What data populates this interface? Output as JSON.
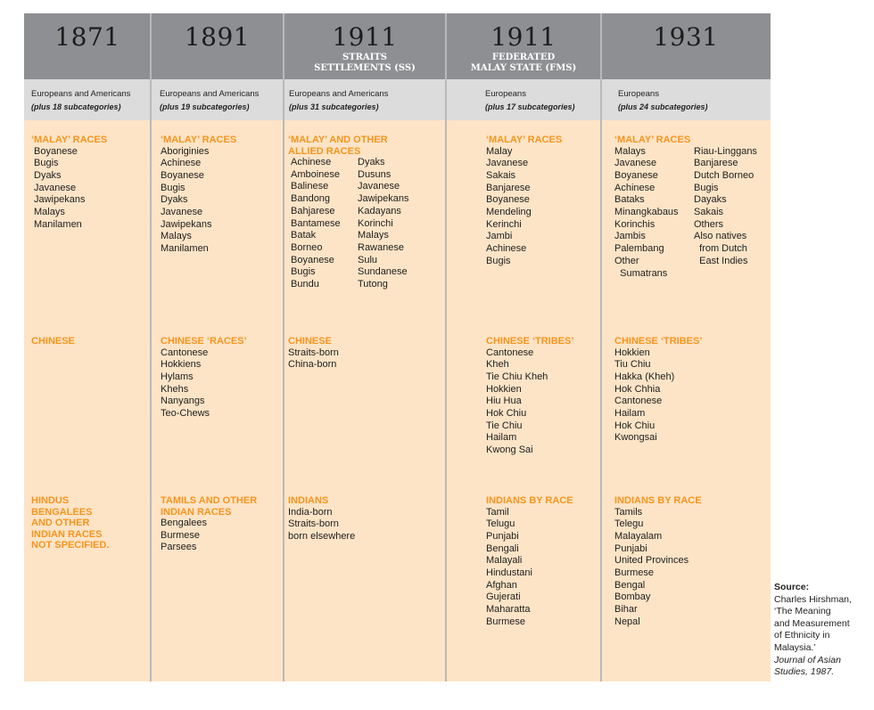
{
  "colors": {
    "header": "#8e8f92",
    "subheader": "#dcdcdd",
    "body": "#fde4c7",
    "heading": "#f7941d"
  },
  "columns": [
    {
      "year": "1871",
      "subtitle": "",
      "europeans": "Europeans and Americans",
      "subcats": "(plus 18 subcategories)",
      "malay": {
        "heading": "‘MALAY’ RACES",
        "items": [
          "Boyanese",
          "Bugis",
          "Dyaks",
          "Javanese",
          "Jawipekans",
          "Malays",
          "Manilamen"
        ],
        "items2": []
      },
      "chinese": {
        "heading": "CHINESE",
        "items": []
      },
      "indian": {
        "heading": "HINDUS\nBENGALEES\nAND OTHER\nINDIAN RACES\nNOT SPECIFIED.",
        "items": []
      }
    },
    {
      "year": "1891",
      "subtitle": "",
      "europeans": "Europeans and Americans",
      "subcats": "(plus 19 subcategories)",
      "malay": {
        "heading": "‘MALAY’ RACES",
        "items": [
          "Aboriginies",
          "Achinese",
          "Boyanese",
          "Bugis",
          "Dyaks",
          "Javanese",
          "Jawipekans",
          "Malays",
          "Manilamen"
        ],
        "items2": []
      },
      "chinese": {
        "heading": "CHINESE ‘RACES’",
        "items": [
          "Cantonese",
          "Hokkiens",
          "Hylams",
          "Khehs",
          "Nanyangs",
          "Teo-Chews"
        ]
      },
      "indian": {
        "heading": "TAMILS AND OTHER\nINDIAN RACES",
        "items": [
          "Bengalees",
          "Burmese",
          "Parsees"
        ]
      }
    },
    {
      "year": "1911",
      "subtitle": "STRAITS\nSETTLEMENTS (SS)",
      "europeans": "Europeans and Americans",
      "subcats": "(plus 31 subcategories)",
      "malay": {
        "heading": "‘MALAY’ AND OTHER\nALLIED RACES",
        "items": [
          "Achinese",
          "Amboinese",
          "Balinese",
          "Bandong",
          "Bahjarese",
          "Bantamese",
          "Batak",
          "Borneo",
          "Boyanese",
          "Bugis",
          "Bundu"
        ],
        "items2": [
          "Dyaks",
          "Dusuns",
          "Javanese",
          "Jawipekans",
          "Kadayans",
          "Korinchi",
          "Malays",
          "Rawanese",
          "Sulu",
          "Sundanese",
          "Tutong"
        ]
      },
      "chinese": {
        "heading": "CHINESE",
        "items": [
          "Straits-born",
          "China-born"
        ]
      },
      "indian": {
        "heading": "INDIANS",
        "items": [
          "India-born",
          "Straits-born",
          "born elsewhere"
        ]
      }
    },
    {
      "year": "1911",
      "subtitle": "FEDERATED\nMALAY STATE (FMS)",
      "europeans": "Europeans",
      "subcats": "(plus 17 subcategories)",
      "malay": {
        "heading": "‘MALAY’ RACES",
        "items": [
          "Malay",
          "Javanese",
          "Sakais",
          "Banjarese",
          "Boyanese",
          "Mendeling",
          "Kerinchi",
          "Jambi",
          "Achinese",
          "Bugis"
        ],
        "items2": []
      },
      "chinese": {
        "heading": "CHINESE ‘TRIBES’",
        "items": [
          "Cantonese",
          "Kheh",
          "Tie Chiu Kheh",
          "Hokkien",
          "Hiu Hua",
          "Hok Chiu",
          "Tie Chiu",
          "Hailam",
          "Kwong Sai"
        ]
      },
      "indian": {
        "heading": "INDIANS BY RACE",
        "items": [
          "Tamil",
          "Telugu",
          "Punjabi",
          "Bengali",
          "Malayali",
          "Hindustani",
          "Afghan",
          "Gujerati",
          "Maharatta",
          "Burmese"
        ]
      }
    },
    {
      "year": "1931",
      "subtitle": "",
      "europeans": "Europeans",
      "subcats": "(plus 24 subcategories)",
      "malay": {
        "heading": "‘MALAY’ RACES",
        "items": [
          "Malays",
          "Javanese",
          "Boyanese",
          "Achinese",
          "Bataks",
          "Minangkabaus",
          "Korinchis",
          "Jambis",
          "Palembang",
          "Other",
          "  Sumatrans"
        ],
        "items2": [
          "Riau-Linggans",
          "Banjarese",
          "Dutch Borneo",
          "Bugis",
          "Dayaks",
          "Sakais",
          "Others",
          "Also natives",
          "  from Dutch",
          "  East Indies"
        ]
      },
      "chinese": {
        "heading": "CHINESE ‘TRIBES’",
        "items": [
          "Hokkien",
          "Tiu Chiu",
          "Hakka (Kheh)",
          "Hok Chhia",
          "Cantonese",
          "Hailam",
          "Hok Chiu",
          "Kwongsai"
        ]
      },
      "indian": {
        "heading": "INDIANS BY RACE",
        "items": [
          "Tamils",
          "Telegu",
          "Malayalam",
          "Punjabi",
          "United Provinces",
          "Burmese",
          "Bengal",
          "Bombay",
          "Bihar",
          "Nepal"
        ]
      }
    }
  ],
  "source": {
    "label": "Source:",
    "lines": [
      "Charles Hirshman,",
      "‘The Meaning",
      "and Measurement",
      "of Ethnicity in",
      "Malaysia.’"
    ],
    "journal": "Journal of Asian",
    "journal2": "Studies, 1987."
  }
}
